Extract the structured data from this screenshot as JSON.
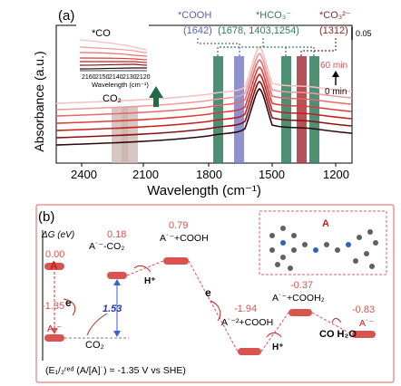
{
  "panel_a": {
    "label": "(a)",
    "xlabel": "Wavelength (cm⁻¹)",
    "ylabel": "Absorbance (a.u.)",
    "xticks": [
      "2400",
      "2100",
      "1800",
      "1500",
      "1200"
    ],
    "scale_bar": "0.05",
    "time_top": "60 min",
    "time_bottom": "0 min",
    "band_co2": "CO₂",
    "ann_cooh_title": "*COOH",
    "ann_cooh_value": "(1642)",
    "ann_hco3_title": "*HCO₃⁻",
    "ann_hco3_value": "(1678, 1403,1254)",
    "ann_co3_title": "*CO₃²⁻",
    "ann_co3_value": "(1312)",
    "inset": {
      "title": "*CO",
      "xlabel": "Wavelength (cm⁻¹)",
      "xticks": [
        "2160",
        "2150",
        "2140",
        "2130",
        "2120"
      ]
    }
  },
  "panel_b": {
    "label": "(b)",
    "ylabel": "ΔG (eV)",
    "states": [
      {
        "energy": "0.00",
        "label": "A"
      },
      {
        "energy": "-1.35",
        "label": "A˙⁻"
      },
      {
        "energy": "0.18",
        "label": "A˙⁻-CO₂"
      },
      {
        "energy": "0.79",
        "label": "A˙⁻+COOH"
      },
      {
        "energy": "-1.94",
        "label": "A˙⁻²+COOH"
      },
      {
        "energy": "-0.37",
        "label": "A˙⁻+COOH₂"
      },
      {
        "energy": "-0.83",
        "label": "A˙⁻"
      }
    ],
    "e_left": "e",
    "co2_left": "CO₂",
    "barrier": "1.53",
    "h_plus_1": "H⁺",
    "e_mid": "e",
    "h_plus_2": "H⁺",
    "products": "CO H₂O",
    "molecule_label": "A",
    "footnote": "(E₁/₂ʳᵉᵈ (A/[A]˙) = -1.35 V vs SHE)"
  },
  "colors": {
    "spectra": [
      "#2a0a0a",
      "#8a1010",
      "#c81e1e",
      "#e03a3a",
      "#e86a6a",
      "#f09a9a",
      "#f5c0c0"
    ],
    "band_gray": "#c9b3ad",
    "band_green": "#2e7d5b",
    "band_purple": "#7b7fc4",
    "band_red": "#a8323a",
    "accent_red": "#d9534f",
    "hco3_text": "#2e7d5b",
    "cooh_text": "#5a5fb0",
    "co3_text": "#8b2a2a"
  }
}
